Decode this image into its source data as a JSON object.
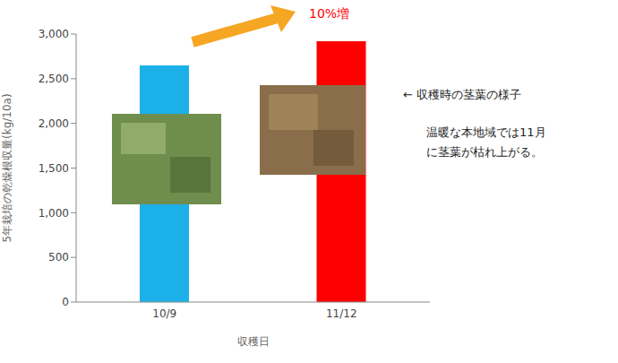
{
  "chart_data": {
    "type": "bar",
    "categories": [
      "10/9",
      "11/12"
    ],
    "values": [
      2650,
      2920
    ],
    "colors": [
      "#1cb0e8",
      "#ff0000"
    ],
    "ylim": [
      0,
      3000
    ],
    "yticks": [
      0,
      500,
      {
        "value": 1000,
        "label": "1,000"
      },
      {
        "value": 1500,
        "label": "1,500"
      },
      {
        "value": 2000,
        "label": "2,000"
      },
      {
        "value": 2500,
        "label": "2,500"
      },
      {
        "value": 3000,
        "label": "3,000"
      }
    ],
    "y_label": "5年栽培の乾燥根収量(kg/10a)",
    "x_label": "収穫日",
    "grid": false,
    "annotations": [
      "10%増",
      "← 収穫時の茎葉の様子",
      "温暖な本地域では11月に茎葉が枯れ上がる。"
    ]
  }
}
